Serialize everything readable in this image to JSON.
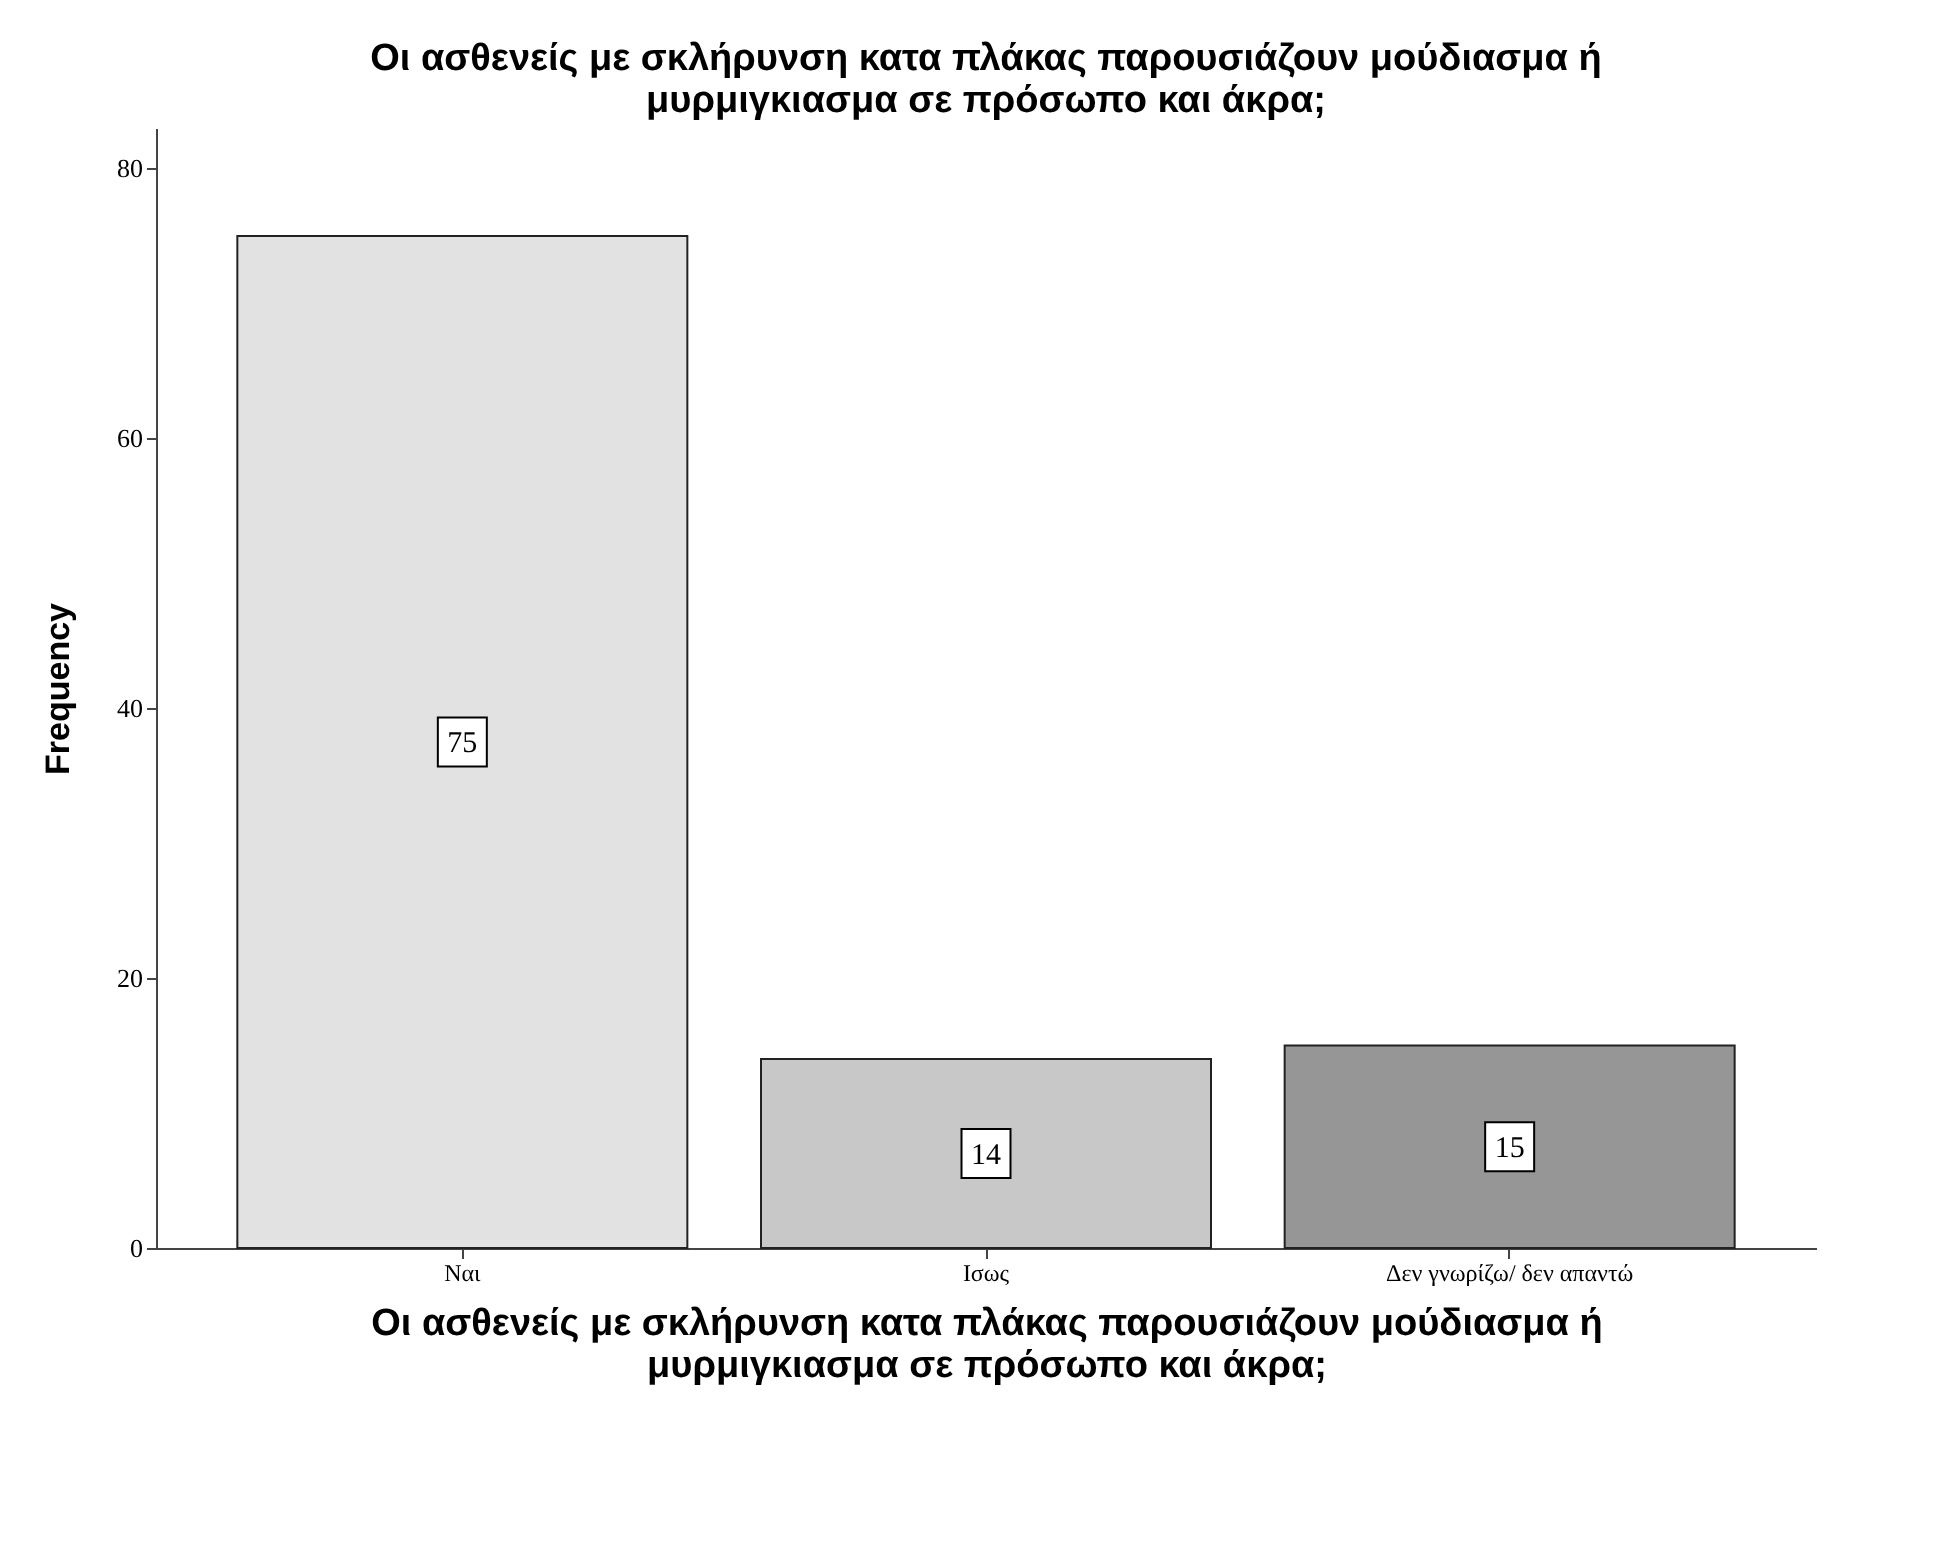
{
  "chart_data": {
    "type": "bar",
    "title": "Οι ασθενείς με σκλήρυνση κατα πλάκας παρουσιάζουν μούδιασμα ή\nμυρμιγκιασμα σε πρόσωπο και άκρα;",
    "xlabel": "Οι ασθενείς με σκλήρυνση κατα πλάκας παρουσιάζουν μούδιασμα ή\nμυρμιγκιασμα σε πρόσωπο και άκρα;",
    "ylabel": "Frequency",
    "categories": [
      "Ναι",
      "Ισως",
      "Δεν γνωρίζω/ δεν απαντώ"
    ],
    "values": [
      75,
      14,
      15
    ],
    "colors": [
      "#e2e2e2",
      "#c8c8c8",
      "#969696"
    ],
    "ylim": [
      0,
      83
    ],
    "yticks": [
      0,
      20,
      40,
      60,
      80
    ],
    "grid": false,
    "legend": false,
    "data_labels": true
  }
}
